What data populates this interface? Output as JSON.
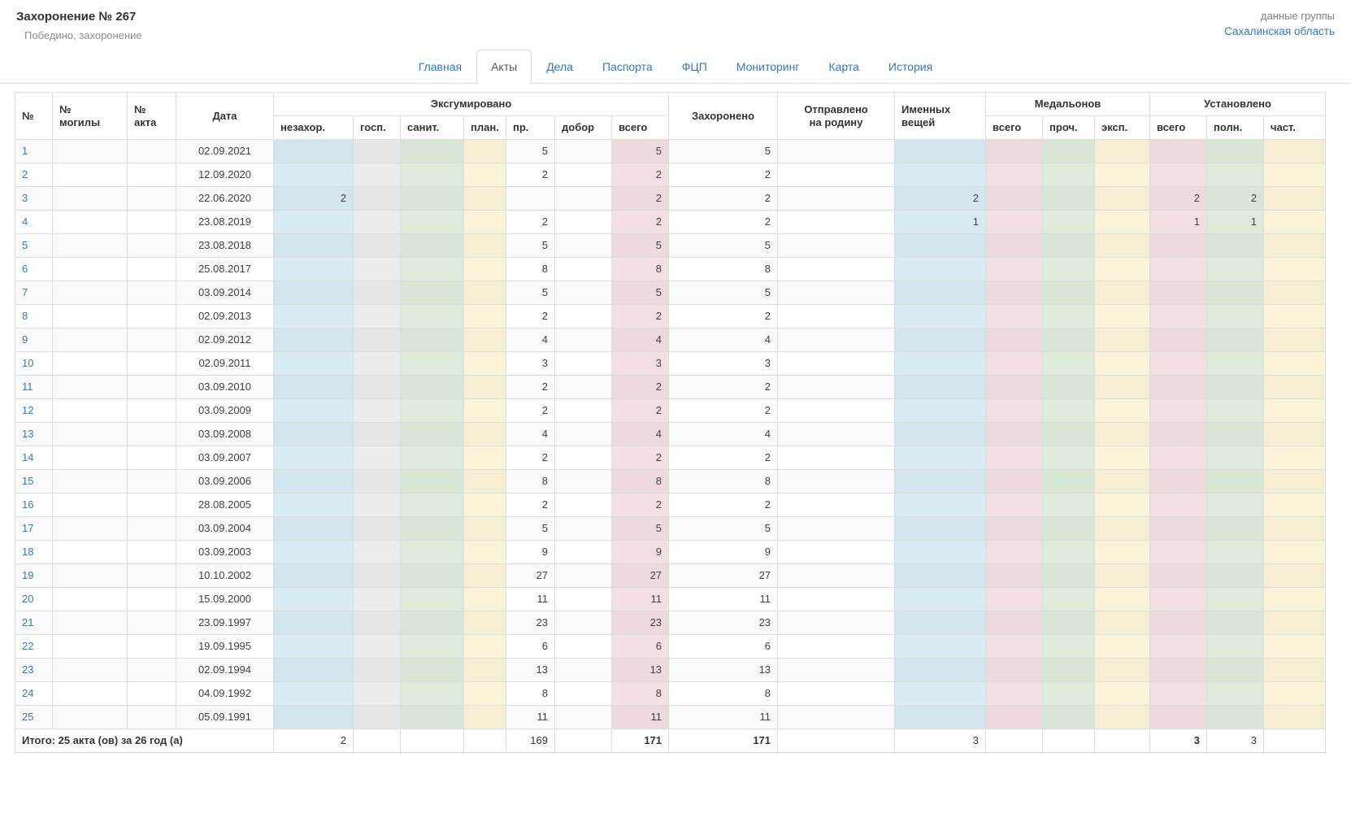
{
  "page": {
    "title": "Захоронение № 267",
    "subtitle": "Победино, захоронение",
    "group_caption": "данные группы",
    "group_link": "Сахалинская область"
  },
  "tabs": [
    {
      "label": "Главная",
      "active": false
    },
    {
      "label": "Акты",
      "active": true
    },
    {
      "label": "Дела",
      "active": false
    },
    {
      "label": "Паспорта",
      "active": false
    },
    {
      "label": "ФЦП",
      "active": false
    },
    {
      "label": "Мониторинг",
      "active": false
    },
    {
      "label": "Карта",
      "active": false
    },
    {
      "label": "История",
      "active": false
    }
  ],
  "table": {
    "headers": {
      "n": "№",
      "grave_no": "№\nмогилы",
      "act_no": "№\nакта",
      "date": "Дата",
      "exhumed_group": "Эксгумировано",
      "nezahor": "незахор.",
      "gosp": "госп.",
      "sanit": "санит.",
      "plan": "план.",
      "pr": "пр.",
      "dobor": "добор",
      "vsego": "всего",
      "buried": "Захоронено",
      "sent_home": "Отправлено\nна родину",
      "named_things": "Именных\nвещей",
      "medallions_group": "Медальонов",
      "med_vsego": "всего",
      "med_proch": "проч.",
      "med_exp": "эксп.",
      "installed_group": "Установлено",
      "inst_vsego": "всего",
      "inst_poln": "полн.",
      "inst_chast": "част."
    },
    "rows": [
      {
        "n": "1",
        "grave_no": "",
        "act_no": "",
        "date": "02.09.2021",
        "nezahor": "",
        "gosp": "",
        "sanit": "",
        "plan": "",
        "pr": "5",
        "dobor": "",
        "vsego": "5",
        "buried": "5",
        "sent_home": "",
        "named_things": "",
        "med_vsego": "",
        "med_proch": "",
        "med_exp": "",
        "inst_vsego": "",
        "inst_poln": "",
        "inst_chast": ""
      },
      {
        "n": "2",
        "grave_no": "",
        "act_no": "",
        "date": "12.09.2020",
        "nezahor": "",
        "gosp": "",
        "sanit": "",
        "plan": "",
        "pr": "2",
        "dobor": "",
        "vsego": "2",
        "buried": "2",
        "sent_home": "",
        "named_things": "",
        "med_vsego": "",
        "med_proch": "",
        "med_exp": "",
        "inst_vsego": "",
        "inst_poln": "",
        "inst_chast": ""
      },
      {
        "n": "3",
        "grave_no": "",
        "act_no": "",
        "date": "22.06.2020",
        "nezahor": "2",
        "gosp": "",
        "sanit": "",
        "plan": "",
        "pr": "",
        "dobor": "",
        "vsego": "2",
        "buried": "2",
        "sent_home": "",
        "named_things": "2",
        "med_vsego": "",
        "med_proch": "",
        "med_exp": "",
        "inst_vsego": "2",
        "inst_poln": "2",
        "inst_chast": ""
      },
      {
        "n": "4",
        "grave_no": "",
        "act_no": "",
        "date": "23.08.2019",
        "nezahor": "",
        "gosp": "",
        "sanit": "",
        "plan": "",
        "pr": "2",
        "dobor": "",
        "vsego": "2",
        "buried": "2",
        "sent_home": "",
        "named_things": "1",
        "med_vsego": "",
        "med_proch": "",
        "med_exp": "",
        "inst_vsego": "1",
        "inst_poln": "1",
        "inst_chast": ""
      },
      {
        "n": "5",
        "grave_no": "",
        "act_no": "",
        "date": "23.08.2018",
        "nezahor": "",
        "gosp": "",
        "sanit": "",
        "plan": "",
        "pr": "5",
        "dobor": "",
        "vsego": "5",
        "buried": "5",
        "sent_home": "",
        "named_things": "",
        "med_vsego": "",
        "med_proch": "",
        "med_exp": "",
        "inst_vsego": "",
        "inst_poln": "",
        "inst_chast": ""
      },
      {
        "n": "6",
        "grave_no": "",
        "act_no": "",
        "date": "25.08.2017",
        "nezahor": "",
        "gosp": "",
        "sanit": "",
        "plan": "",
        "pr": "8",
        "dobor": "",
        "vsego": "8",
        "buried": "8",
        "sent_home": "",
        "named_things": "",
        "med_vsego": "",
        "med_proch": "",
        "med_exp": "",
        "inst_vsego": "",
        "inst_poln": "",
        "inst_chast": ""
      },
      {
        "n": "7",
        "grave_no": "",
        "act_no": "",
        "date": "03.09.2014",
        "nezahor": "",
        "gosp": "",
        "sanit": "",
        "plan": "",
        "pr": "5",
        "dobor": "",
        "vsego": "5",
        "buried": "5",
        "sent_home": "",
        "named_things": "",
        "med_vsego": "",
        "med_proch": "",
        "med_exp": "",
        "inst_vsego": "",
        "inst_poln": "",
        "inst_chast": ""
      },
      {
        "n": "8",
        "grave_no": "",
        "act_no": "",
        "date": "02.09.2013",
        "nezahor": "",
        "gosp": "",
        "sanit": "",
        "plan": "",
        "pr": "2",
        "dobor": "",
        "vsego": "2",
        "buried": "2",
        "sent_home": "",
        "named_things": "",
        "med_vsego": "",
        "med_proch": "",
        "med_exp": "",
        "inst_vsego": "",
        "inst_poln": "",
        "inst_chast": ""
      },
      {
        "n": "9",
        "grave_no": "",
        "act_no": "",
        "date": "02.09.2012",
        "nezahor": "",
        "gosp": "",
        "sanit": "",
        "plan": "",
        "pr": "4",
        "dobor": "",
        "vsego": "4",
        "buried": "4",
        "sent_home": "",
        "named_things": "",
        "med_vsego": "",
        "med_proch": "",
        "med_exp": "",
        "inst_vsego": "",
        "inst_poln": "",
        "inst_chast": ""
      },
      {
        "n": "10",
        "grave_no": "",
        "act_no": "",
        "date": "02.09.2011",
        "nezahor": "",
        "gosp": "",
        "sanit": "",
        "plan": "",
        "pr": "3",
        "dobor": "",
        "vsego": "3",
        "buried": "3",
        "sent_home": "",
        "named_things": "",
        "med_vsego": "",
        "med_proch": "",
        "med_exp": "",
        "inst_vsego": "",
        "inst_poln": "",
        "inst_chast": ""
      },
      {
        "n": "11",
        "grave_no": "",
        "act_no": "",
        "date": "03.09.2010",
        "nezahor": "",
        "gosp": "",
        "sanit": "",
        "plan": "",
        "pr": "2",
        "dobor": "",
        "vsego": "2",
        "buried": "2",
        "sent_home": "",
        "named_things": "",
        "med_vsego": "",
        "med_proch": "",
        "med_exp": "",
        "inst_vsego": "",
        "inst_poln": "",
        "inst_chast": ""
      },
      {
        "n": "12",
        "grave_no": "",
        "act_no": "",
        "date": "03.09.2009",
        "nezahor": "",
        "gosp": "",
        "sanit": "",
        "plan": "",
        "pr": "2",
        "dobor": "",
        "vsego": "2",
        "buried": "2",
        "sent_home": "",
        "named_things": "",
        "med_vsego": "",
        "med_proch": "",
        "med_exp": "",
        "inst_vsego": "",
        "inst_poln": "",
        "inst_chast": ""
      },
      {
        "n": "13",
        "grave_no": "",
        "act_no": "",
        "date": "03.09.2008",
        "nezahor": "",
        "gosp": "",
        "sanit": "",
        "plan": "",
        "pr": "4",
        "dobor": "",
        "vsego": "4",
        "buried": "4",
        "sent_home": "",
        "named_things": "",
        "med_vsego": "",
        "med_proch": "",
        "med_exp": "",
        "inst_vsego": "",
        "inst_poln": "",
        "inst_chast": ""
      },
      {
        "n": "14",
        "grave_no": "",
        "act_no": "",
        "date": "03.09.2007",
        "nezahor": "",
        "gosp": "",
        "sanit": "",
        "plan": "",
        "pr": "2",
        "dobor": "",
        "vsego": "2",
        "buried": "2",
        "sent_home": "",
        "named_things": "",
        "med_vsego": "",
        "med_proch": "",
        "med_exp": "",
        "inst_vsego": "",
        "inst_poln": "",
        "inst_chast": ""
      },
      {
        "n": "15",
        "grave_no": "",
        "act_no": "",
        "date": "03.09.2006",
        "nezahor": "",
        "gosp": "",
        "sanit": "",
        "plan": "",
        "pr": "8",
        "dobor": "",
        "vsego": "8",
        "buried": "8",
        "sent_home": "",
        "named_things": "",
        "med_vsego": "",
        "med_proch": "",
        "med_exp": "",
        "inst_vsego": "",
        "inst_poln": "",
        "inst_chast": ""
      },
      {
        "n": "16",
        "grave_no": "",
        "act_no": "",
        "date": "28.08.2005",
        "nezahor": "",
        "gosp": "",
        "sanit": "",
        "plan": "",
        "pr": "2",
        "dobor": "",
        "vsego": "2",
        "buried": "2",
        "sent_home": "",
        "named_things": "",
        "med_vsego": "",
        "med_proch": "",
        "med_exp": "",
        "inst_vsego": "",
        "inst_poln": "",
        "inst_chast": ""
      },
      {
        "n": "17",
        "grave_no": "",
        "act_no": "",
        "date": "03.09.2004",
        "nezahor": "",
        "gosp": "",
        "sanit": "",
        "plan": "",
        "pr": "5",
        "dobor": "",
        "vsego": "5",
        "buried": "5",
        "sent_home": "",
        "named_things": "",
        "med_vsego": "",
        "med_proch": "",
        "med_exp": "",
        "inst_vsego": "",
        "inst_poln": "",
        "inst_chast": ""
      },
      {
        "n": "18",
        "grave_no": "",
        "act_no": "",
        "date": "03.09.2003",
        "nezahor": "",
        "gosp": "",
        "sanit": "",
        "plan": "",
        "pr": "9",
        "dobor": "",
        "vsego": "9",
        "buried": "9",
        "sent_home": "",
        "named_things": "",
        "med_vsego": "",
        "med_proch": "",
        "med_exp": "",
        "inst_vsego": "",
        "inst_poln": "",
        "inst_chast": ""
      },
      {
        "n": "19",
        "grave_no": "",
        "act_no": "",
        "date": "10.10.2002",
        "nezahor": "",
        "gosp": "",
        "sanit": "",
        "plan": "",
        "pr": "27",
        "dobor": "",
        "vsego": "27",
        "buried": "27",
        "sent_home": "",
        "named_things": "",
        "med_vsego": "",
        "med_proch": "",
        "med_exp": "",
        "inst_vsego": "",
        "inst_poln": "",
        "inst_chast": ""
      },
      {
        "n": "20",
        "grave_no": "",
        "act_no": "",
        "date": "15.09.2000",
        "nezahor": "",
        "gosp": "",
        "sanit": "",
        "plan": "",
        "pr": "11",
        "dobor": "",
        "vsego": "11",
        "buried": "11",
        "sent_home": "",
        "named_things": "",
        "med_vsego": "",
        "med_proch": "",
        "med_exp": "",
        "inst_vsego": "",
        "inst_poln": "",
        "inst_chast": ""
      },
      {
        "n": "21",
        "grave_no": "",
        "act_no": "",
        "date": "23.09.1997",
        "nezahor": "",
        "gosp": "",
        "sanit": "",
        "plan": "",
        "pr": "23",
        "dobor": "",
        "vsego": "23",
        "buried": "23",
        "sent_home": "",
        "named_things": "",
        "med_vsego": "",
        "med_proch": "",
        "med_exp": "",
        "inst_vsego": "",
        "inst_poln": "",
        "inst_chast": ""
      },
      {
        "n": "22",
        "grave_no": "",
        "act_no": "",
        "date": "19.09.1995",
        "nezahor": "",
        "gosp": "",
        "sanit": "",
        "plan": "",
        "pr": "6",
        "dobor": "",
        "vsego": "6",
        "buried": "6",
        "sent_home": "",
        "named_things": "",
        "med_vsego": "",
        "med_proch": "",
        "med_exp": "",
        "inst_vsego": "",
        "inst_poln": "",
        "inst_chast": ""
      },
      {
        "n": "23",
        "grave_no": "",
        "act_no": "",
        "date": "02.09.1994",
        "nezahor": "",
        "gosp": "",
        "sanit": "",
        "plan": "",
        "pr": "13",
        "dobor": "",
        "vsego": "13",
        "buried": "13",
        "sent_home": "",
        "named_things": "",
        "med_vsego": "",
        "med_proch": "",
        "med_exp": "",
        "inst_vsego": "",
        "inst_poln": "",
        "inst_chast": ""
      },
      {
        "n": "24",
        "grave_no": "",
        "act_no": "",
        "date": "04.09.1992",
        "nezahor": "",
        "gosp": "",
        "sanit": "",
        "plan": "",
        "pr": "8",
        "dobor": "",
        "vsego": "8",
        "buried": "8",
        "sent_home": "",
        "named_things": "",
        "med_vsego": "",
        "med_proch": "",
        "med_exp": "",
        "inst_vsego": "",
        "inst_poln": "",
        "inst_chast": ""
      },
      {
        "n": "25",
        "grave_no": "",
        "act_no": "",
        "date": "05.09.1991",
        "nezahor": "",
        "gosp": "",
        "sanit": "",
        "plan": "",
        "pr": "11",
        "dobor": "",
        "vsego": "11",
        "buried": "11",
        "sent_home": "",
        "named_things": "",
        "med_vsego": "",
        "med_proch": "",
        "med_exp": "",
        "inst_vsego": "",
        "inst_poln": "",
        "inst_chast": ""
      }
    ],
    "footer": {
      "label": "Итого: 25 акта (ов) за 26 год (а)",
      "nezahor": "2",
      "gosp": "",
      "sanit": "",
      "plan": "",
      "pr": "169",
      "dobor": "",
      "vsego": "171",
      "buried": "171",
      "sent_home": "",
      "named_things": "3",
      "med_vsego": "",
      "med_proch": "",
      "med_exp": "",
      "inst_vsego": "3",
      "inst_poln": "3",
      "inst_chast": ""
    }
  },
  "colors": {
    "link": "#337ab7",
    "tint_blue": "#d9eaf3",
    "tint_gray": "#ececec",
    "tint_green": "#ddecd8",
    "tint_cream": "#faf3da",
    "tint_pink": "#f2dfe2"
  }
}
